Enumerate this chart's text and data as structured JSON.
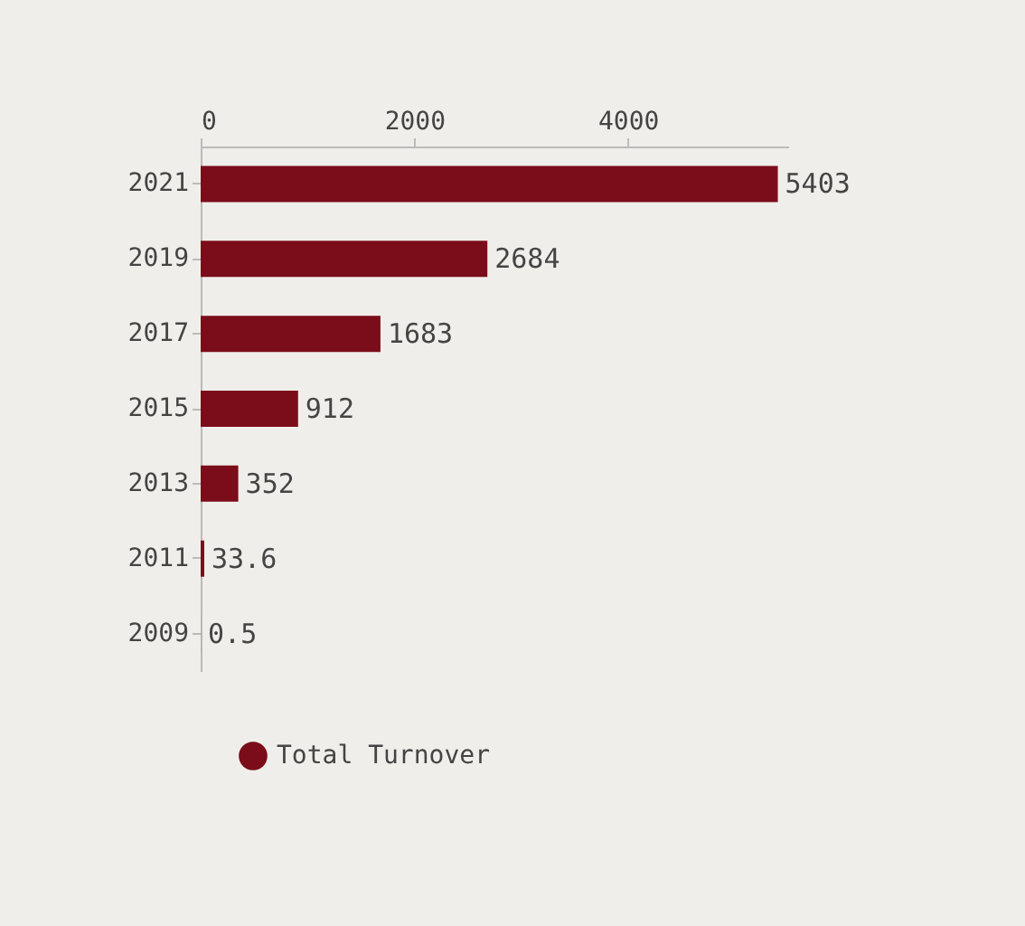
{
  "chart_data": {
    "type": "bar",
    "orientation": "horizontal",
    "categories": [
      "2021",
      "2019",
      "2017",
      "2015",
      "2013",
      "2011",
      "2009"
    ],
    "series": [
      {
        "name": "Total Turnover",
        "color": "#7b0c1a",
        "values": [
          5403,
          2684,
          1683,
          912,
          352,
          33.6,
          0.5
        ]
      }
    ],
    "xlim": [
      0,
      5500
    ],
    "xticks": [
      0,
      2000,
      4000
    ],
    "data_labels": true,
    "legend": "bottom",
    "grid": false,
    "marker": "circle"
  }
}
